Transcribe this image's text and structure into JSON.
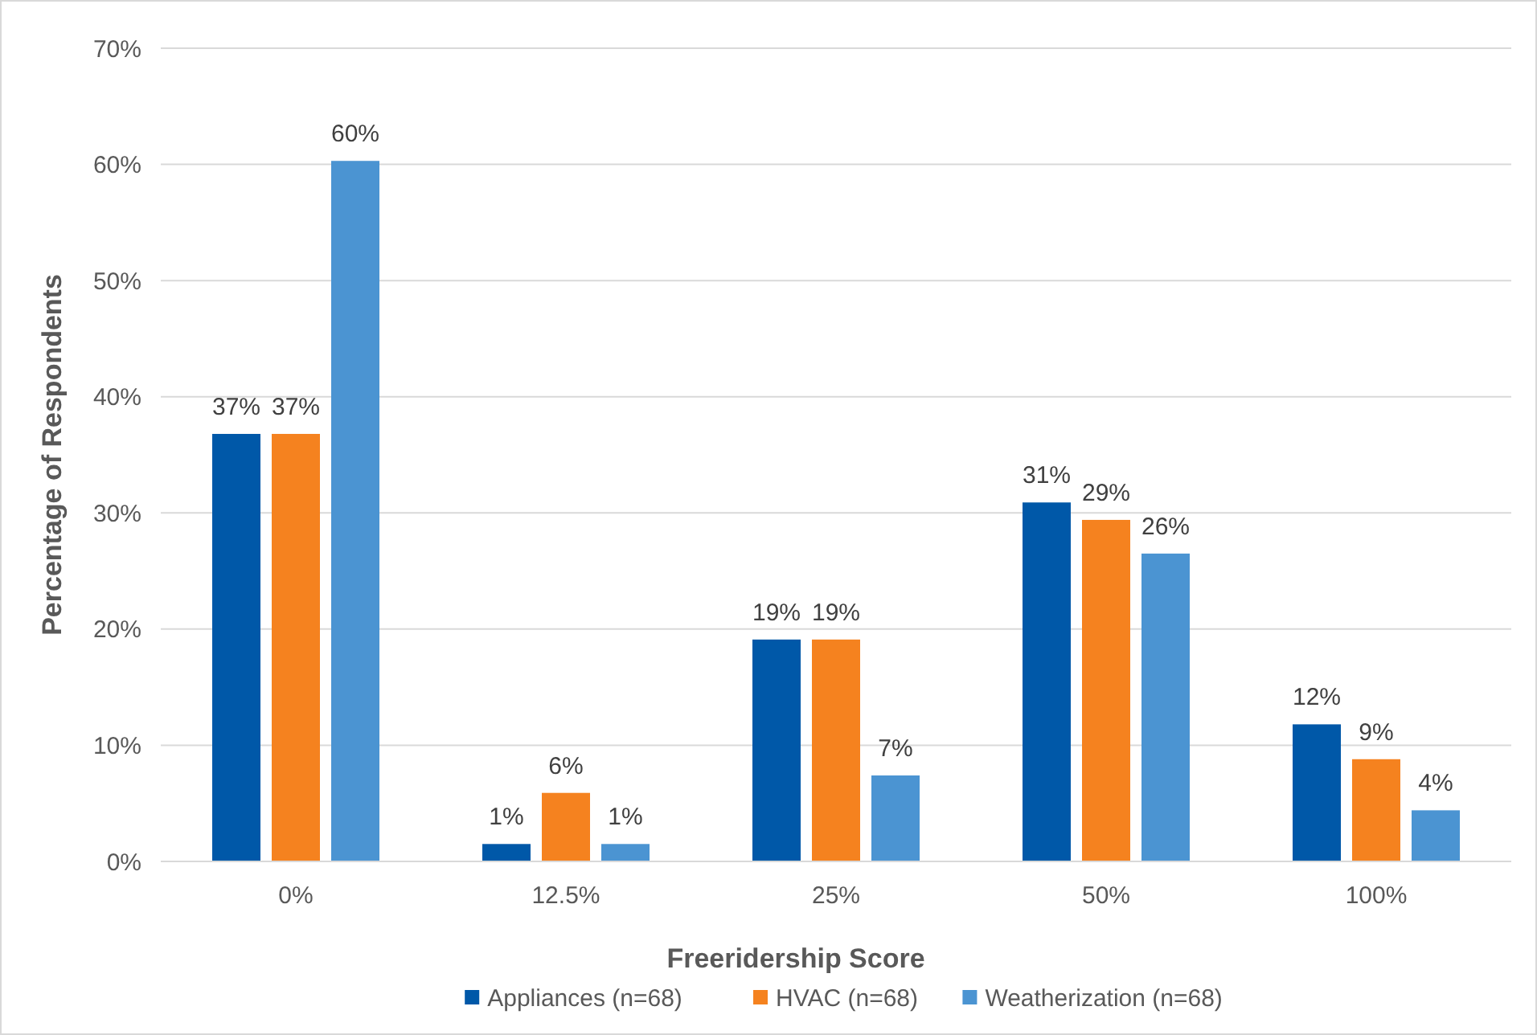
{
  "chart_data": {
    "type": "bar",
    "xlabel": "Freeridership Score",
    "ylabel": "Percentage of Respondents",
    "categories": [
      "0%",
      "12.5%",
      "25%",
      "50%",
      "100%"
    ],
    "series": [
      {
        "name": "Appliances (n=68)",
        "color": "#0058a8",
        "values": [
          36.8,
          1.5,
          19.1,
          30.9,
          11.8
        ],
        "value_labels": [
          "37%",
          "1%",
          "19%",
          "31%",
          "12%"
        ]
      },
      {
        "name": "HVAC (n=68)",
        "color": "#f5821f",
        "values": [
          36.8,
          5.9,
          19.1,
          29.4,
          8.8
        ],
        "value_labels": [
          "37%",
          "6%",
          "19%",
          "29%",
          "9%"
        ]
      },
      {
        "name": "Weatherization (n=68)",
        "color": "#4b94d2",
        "values": [
          60.3,
          1.5,
          7.4,
          26.5,
          4.4
        ],
        "value_labels": [
          "60%",
          "1%",
          "7%",
          "26%",
          "4%"
        ]
      }
    ],
    "ylim": [
      0,
      70
    ],
    "yticks": [
      {
        "value": 0,
        "label": "0%"
      },
      {
        "value": 10,
        "label": "10%"
      },
      {
        "value": 20,
        "label": "20%"
      },
      {
        "value": 30,
        "label": "30%"
      },
      {
        "value": 40,
        "label": "40%"
      },
      {
        "value": 50,
        "label": "50%"
      },
      {
        "value": 60,
        "label": "60%"
      },
      {
        "value": 70,
        "label": "70%"
      }
    ],
    "grid": "y",
    "legend": "bottom"
  }
}
